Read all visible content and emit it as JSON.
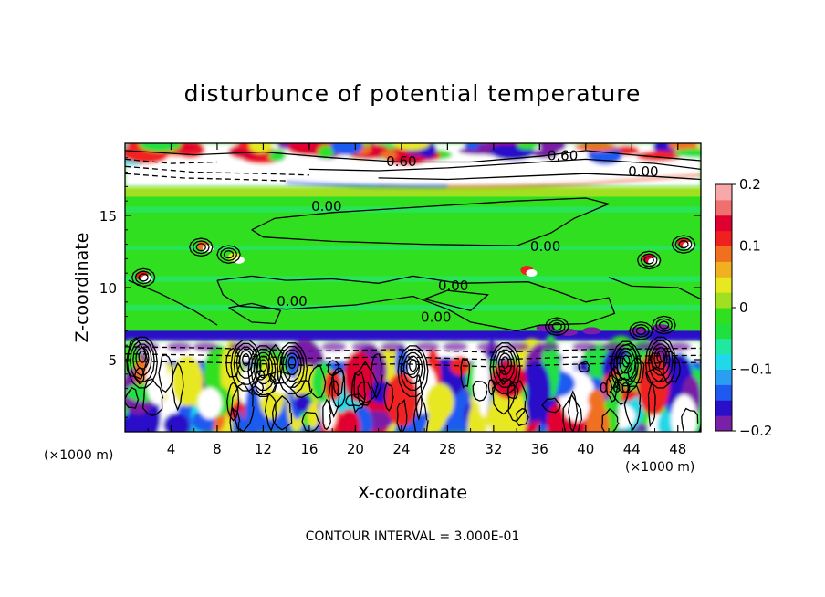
{
  "chart_data": {
    "type": "heatmap",
    "title": "disturbunce of potential temperature",
    "xlabel": "X-coordinate",
    "ylabel": "Z-coordinate",
    "x_unit": "(×1000 m)",
    "x_ticks": [
      4,
      8,
      12,
      16,
      20,
      24,
      28,
      32,
      36,
      40,
      44,
      48
    ],
    "y_ticks": [
      5,
      10,
      15
    ],
    "xlim": [
      0,
      50
    ],
    "ylim": [
      0,
      20
    ],
    "contour_interval_text": "CONTOUR INTERVAL = 3.000E-01",
    "contour_labels": [
      {
        "text": "0.60",
        "x": 24.0,
        "y": 18.8
      },
      {
        "text": "0.60",
        "x": 38.0,
        "y": 19.2
      },
      {
        "text": "0.00",
        "x": 45.0,
        "y": 18.1
      },
      {
        "text": "0.00",
        "x": 17.5,
        "y": 15.7
      },
      {
        "text": "0.00",
        "x": 36.5,
        "y": 12.9
      },
      {
        "text": "0.00",
        "x": 28.5,
        "y": 10.2
      },
      {
        "text": "0.00",
        "x": 14.5,
        "y": 9.1
      },
      {
        "text": "0.00",
        "x": 27.0,
        "y": 8.0
      },
      {
        "text": "0.00",
        "x": 42.5,
        "y": 3.1
      }
    ],
    "colorbar": {
      "min": -0.2,
      "max": 0.2,
      "tick_values": [
        0.2,
        0.1,
        0,
        -0.1,
        -0.2
      ],
      "tick_labels": [
        "0.2",
        "0.1",
        "0",
        "−0.1",
        "−0.2"
      ],
      "colors": [
        "#7a1fa8",
        "#2a0fc8",
        "#1f5af0",
        "#2a9ef0",
        "#20d8e8",
        "#20e8a0",
        "#20e040",
        "#30e020",
        "#a0e020",
        "#e8e820",
        "#f0b020",
        "#f07020",
        "#f02020",
        "#e00030",
        "#f07070",
        "#f8a8a8"
      ]
    },
    "field_bands": [
      {
        "z_from": 17.0,
        "z_to": 20.0,
        "value": "mixed"
      },
      {
        "z_from": 16.3,
        "z_to": 17.0,
        "value": 0.0
      },
      {
        "z_from": 7.0,
        "z_to": 16.3,
        "value": -0.01
      },
      {
        "z_from": 6.3,
        "z_to": 7.0,
        "value": -0.17
      },
      {
        "z_from": 0.0,
        "z_to": 6.3,
        "value": "mixed"
      }
    ]
  }
}
